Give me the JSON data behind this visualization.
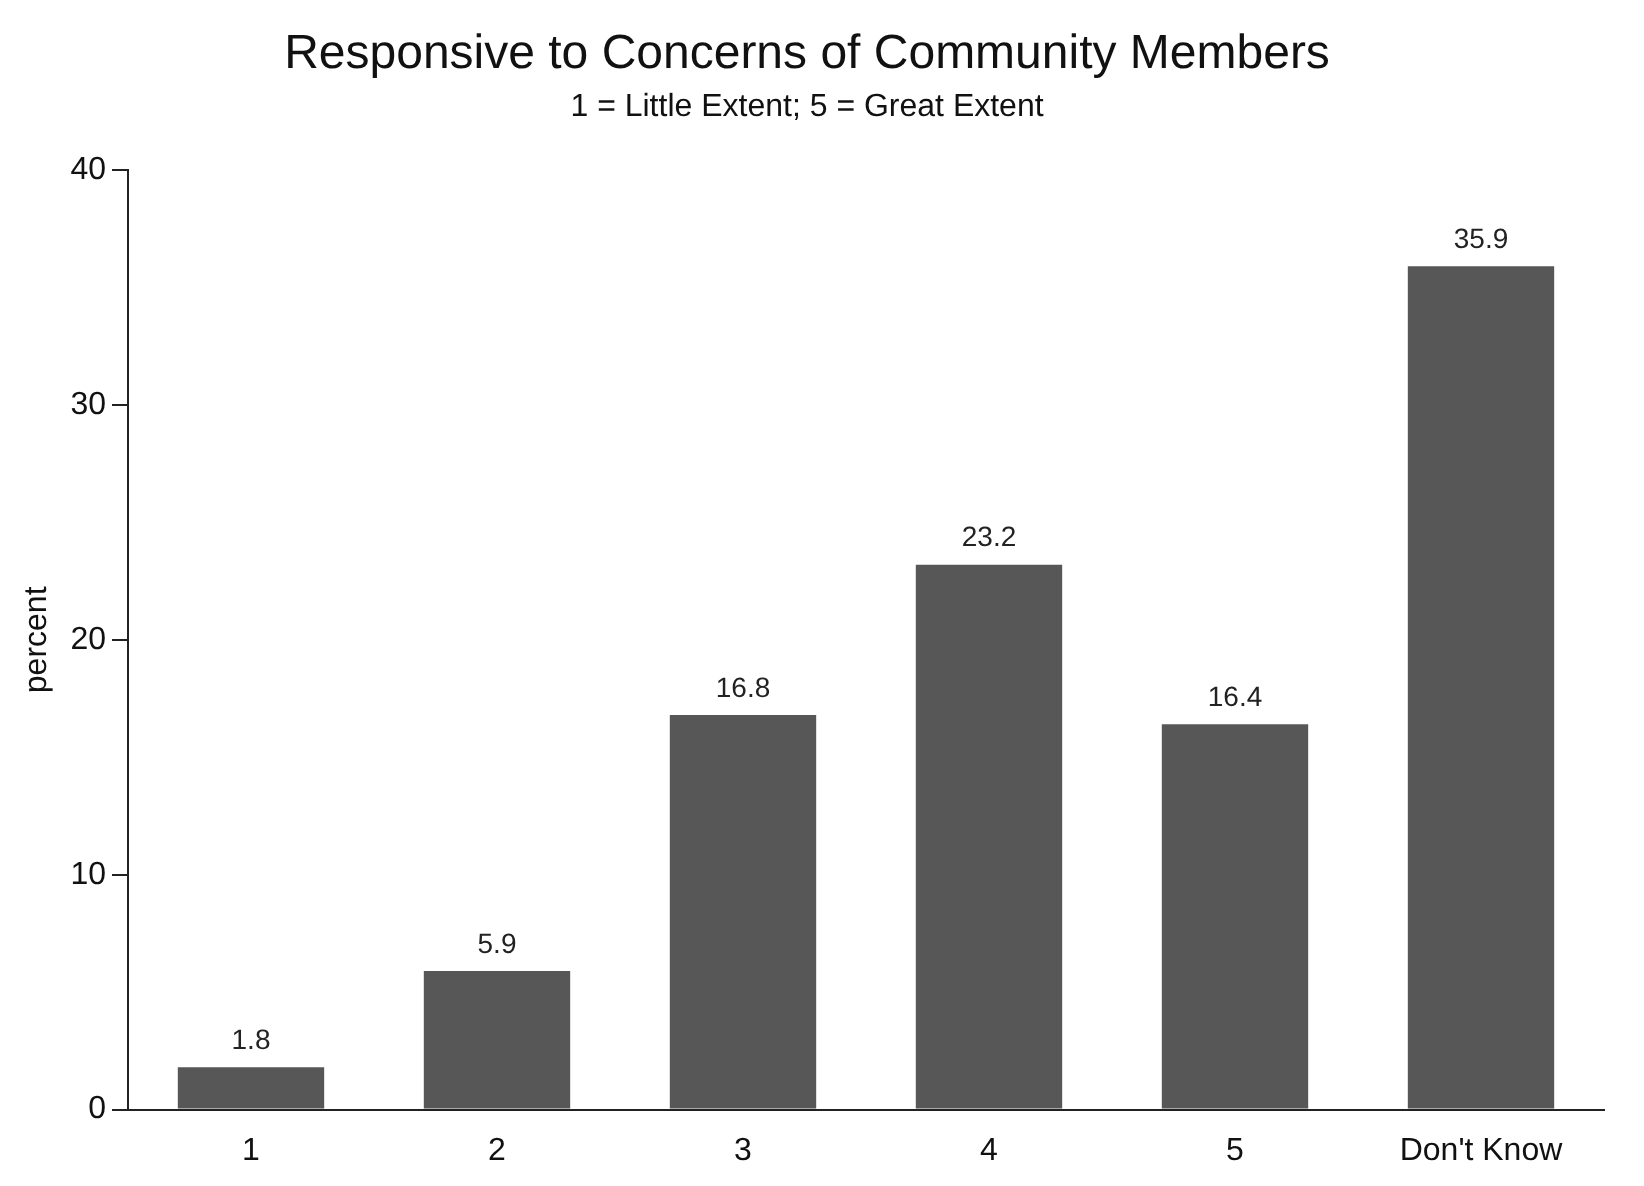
{
  "chart_data": {
    "type": "bar",
    "title": "Responsive to Concerns of Community Members",
    "subtitle": "1 = Little Extent; 5 = Great Extent",
    "ylabel": "percent",
    "categories": [
      "1",
      "2",
      "3",
      "4",
      "5",
      "Don't Know"
    ],
    "values": [
      1.8,
      5.9,
      16.8,
      23.2,
      16.4,
      35.9
    ],
    "color": "#575757",
    "ylim": [
      0,
      40
    ],
    "yticks": [
      0,
      10,
      20,
      30,
      40
    ],
    "grid": false,
    "data_labels": true
  }
}
